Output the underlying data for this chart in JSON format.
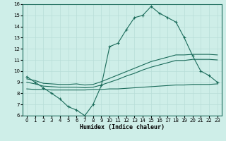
{
  "xlabel": "Humidex (Indice chaleur)",
  "bg_color": "#ceeee8",
  "line_color": "#1a6b5a",
  "grid_color": "#b8ddd8",
  "ylim": [
    6,
    16
  ],
  "xlim": [
    -0.5,
    23.5
  ],
  "humidex": [
    9.5,
    9.0,
    8.5,
    8.0,
    7.5,
    6.8,
    6.5,
    6.0,
    7.0,
    8.7,
    12.2,
    12.5,
    13.7,
    14.8,
    15.0,
    15.8,
    15.2,
    14.8,
    14.4,
    13.0,
    11.4,
    10.0,
    9.6,
    9.0
  ],
  "line2": [
    9.3,
    9.15,
    8.9,
    8.85,
    8.8,
    8.8,
    8.85,
    8.75,
    8.8,
    9.05,
    9.35,
    9.65,
    9.95,
    10.25,
    10.55,
    10.85,
    11.05,
    11.25,
    11.45,
    11.45,
    11.5,
    11.5,
    11.5,
    11.45
  ],
  "line3": [
    9.0,
    8.85,
    8.65,
    8.6,
    8.55,
    8.55,
    8.55,
    8.5,
    8.55,
    8.75,
    9.0,
    9.25,
    9.55,
    9.8,
    10.1,
    10.35,
    10.55,
    10.75,
    10.95,
    10.95,
    11.05,
    11.05,
    11.05,
    11.0
  ],
  "line4": [
    8.4,
    8.35,
    8.35,
    8.3,
    8.3,
    8.3,
    8.3,
    8.3,
    8.35,
    8.35,
    8.4,
    8.4,
    8.45,
    8.5,
    8.55,
    8.6,
    8.65,
    8.7,
    8.75,
    8.75,
    8.8,
    8.8,
    8.8,
    8.85
  ],
  "yticks": [
    6,
    7,
    8,
    9,
    10,
    11,
    12,
    13,
    14,
    15,
    16
  ],
  "xticks": [
    0,
    1,
    2,
    3,
    4,
    5,
    6,
    7,
    8,
    9,
    10,
    11,
    12,
    13,
    14,
    15,
    16,
    17,
    18,
    19,
    20,
    21,
    22,
    23
  ],
  "xlabel_fontsize": 6,
  "tick_fontsize": 5,
  "lw": 0.8,
  "marker_size": 3
}
